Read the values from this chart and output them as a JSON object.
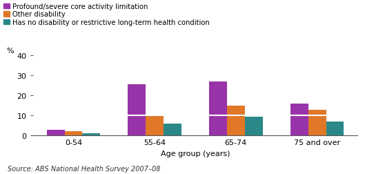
{
  "categories": [
    "0-54",
    "55-64",
    "65-74",
    "75 and over"
  ],
  "series": {
    "Profound/severe core activity limitation": [
      3,
      25.5,
      27,
      16
    ],
    "Other disability": [
      2.2,
      10.5,
      15,
      13
    ],
    "Has no disability or restrictive long-term health condition": [
      1,
      6,
      9.3,
      7
    ]
  },
  "colors": {
    "Profound/severe core activity limitation": "#9933AA",
    "Other disability": "#E07828",
    "Has no disability or restrictive long-term health condition": "#2A8888"
  },
  "bar_width": 0.22,
  "ylim": [
    0,
    40
  ],
  "yticks": [
    0,
    10,
    20,
    30,
    40
  ],
  "ylabel": "%",
  "xlabel": "Age group (years)",
  "source": "Source: ABS National Health Survey 2007–08",
  "legend_labels": [
    "Profound/severe core activity limitation",
    "Other disability",
    "Has no disability or restrictive long-term health condition"
  ],
  "bar_divider_value": 10,
  "background_color": "#ffffff"
}
